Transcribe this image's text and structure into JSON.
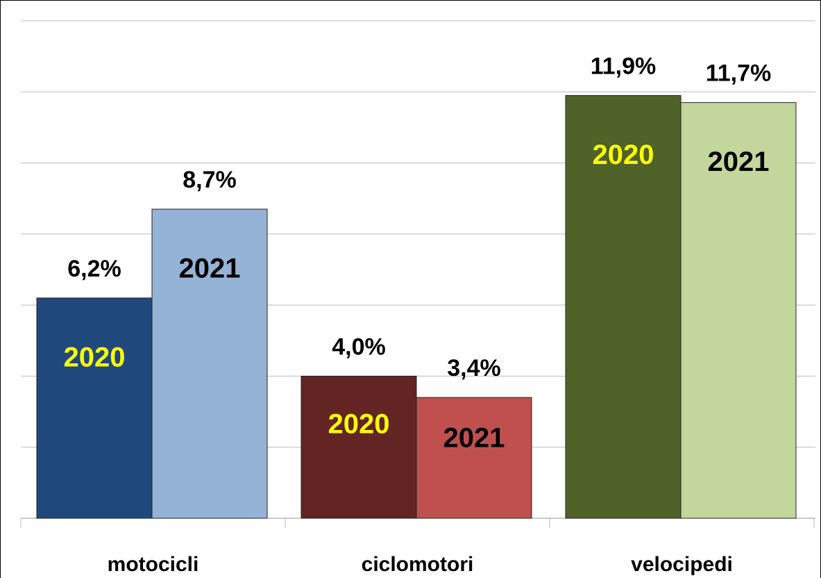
{
  "chart_data": {
    "type": "bar",
    "categories": [
      "motocicli",
      "ciclomotori",
      "velocipedi"
    ],
    "series": [
      {
        "name": "2020",
        "colors": [
          "#1F497D",
          "#632523",
          "#4F6228"
        ],
        "label_color": "#FFFF00",
        "values": [
          6.2,
          4.0,
          11.9
        ],
        "value_labels": [
          "6,2%",
          "4,0%",
          "11,9%"
        ]
      },
      {
        "name": "2021",
        "colors": [
          "#95B3D7",
          "#C0504D",
          "#C3D69B"
        ],
        "label_color": "#000000",
        "values": [
          8.7,
          3.4,
          11.7
        ],
        "value_labels": [
          "8,7%",
          "3,4%",
          "11,7%"
        ]
      }
    ],
    "ylim": [
      0,
      14
    ],
    "yticks": [
      0,
      2,
      4,
      6,
      8,
      10,
      12,
      14
    ],
    "grid": true
  }
}
